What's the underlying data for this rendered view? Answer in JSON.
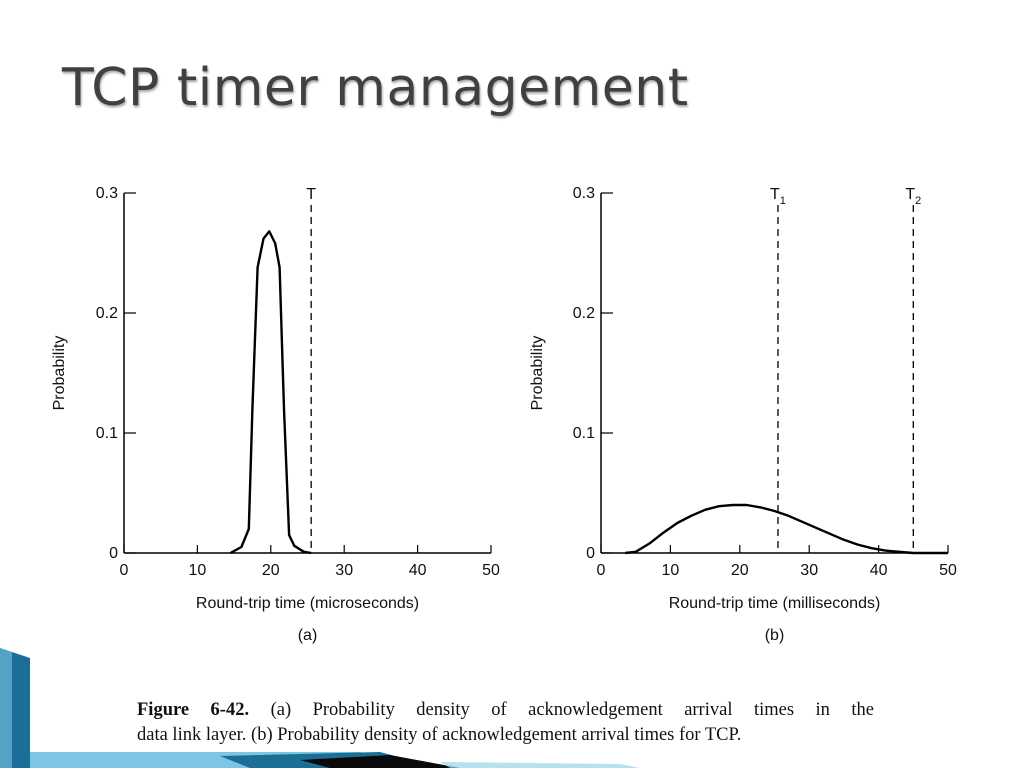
{
  "slide": {
    "title": "TCP timer management"
  },
  "caption": {
    "label": "Figure 6-42.",
    "line1": "(a) Probability density of acknowledgement arrival times in the",
    "line2": "data link layer. (b) Probability density of acknowledgement arrival times for TCP."
  },
  "colors": {
    "title": "#404040",
    "curve": "#000000",
    "deco_blue": "#1b6e96",
    "deco_light": "#7cc6e3"
  },
  "chart_data": [
    {
      "type": "line",
      "panel_label": "(a)",
      "xlabel": "Round-trip time (microseconds)",
      "ylabel": "Probability",
      "xlim": [
        0,
        50
      ],
      "ylim": [
        0,
        0.3
      ],
      "x_ticks": [
        "0",
        "10",
        "20",
        "30",
        "40",
        "50"
      ],
      "y_ticks": [
        "0",
        "0.1",
        "0.2",
        "0.3"
      ],
      "grid": false,
      "x": [
        14.5,
        16,
        17,
        17.5,
        18.2,
        19,
        19.8,
        20.6,
        21.2,
        21.8,
        22.5,
        23.2,
        24.5,
        25.5
      ],
      "y": [
        0.0,
        0.005,
        0.02,
        0.12,
        0.238,
        0.262,
        0.268,
        0.258,
        0.238,
        0.12,
        0.015,
        0.006,
        0.001,
        0.0
      ],
      "thresholds": [
        {
          "label": "T",
          "sub": "",
          "x": 25.5
        }
      ]
    },
    {
      "type": "line",
      "panel_label": "(b)",
      "xlabel": "Round-trip time (milliseconds)",
      "ylabel": "Probability",
      "xlim": [
        0,
        50
      ],
      "ylim": [
        0,
        0.3
      ],
      "x_ticks": [
        "0",
        "10",
        "20",
        "30",
        "40",
        "50"
      ],
      "y_ticks": [
        "0",
        "0.1",
        "0.2",
        "0.3"
      ],
      "grid": false,
      "x": [
        3.5,
        5,
        7,
        9,
        11,
        13,
        15,
        17,
        19,
        21,
        23,
        25,
        27,
        29,
        31,
        33,
        35,
        37,
        39,
        41,
        43,
        45,
        47,
        50
      ],
      "y": [
        0.0,
        0.001,
        0.008,
        0.017,
        0.025,
        0.031,
        0.036,
        0.039,
        0.04,
        0.04,
        0.038,
        0.035,
        0.031,
        0.026,
        0.021,
        0.016,
        0.011,
        0.007,
        0.004,
        0.002,
        0.001,
        0.0,
        0.0,
        0.0
      ],
      "thresholds": [
        {
          "label": "T",
          "sub": "1",
          "x": 25.5
        },
        {
          "label": "T",
          "sub": "2",
          "x": 45
        }
      ]
    }
  ]
}
